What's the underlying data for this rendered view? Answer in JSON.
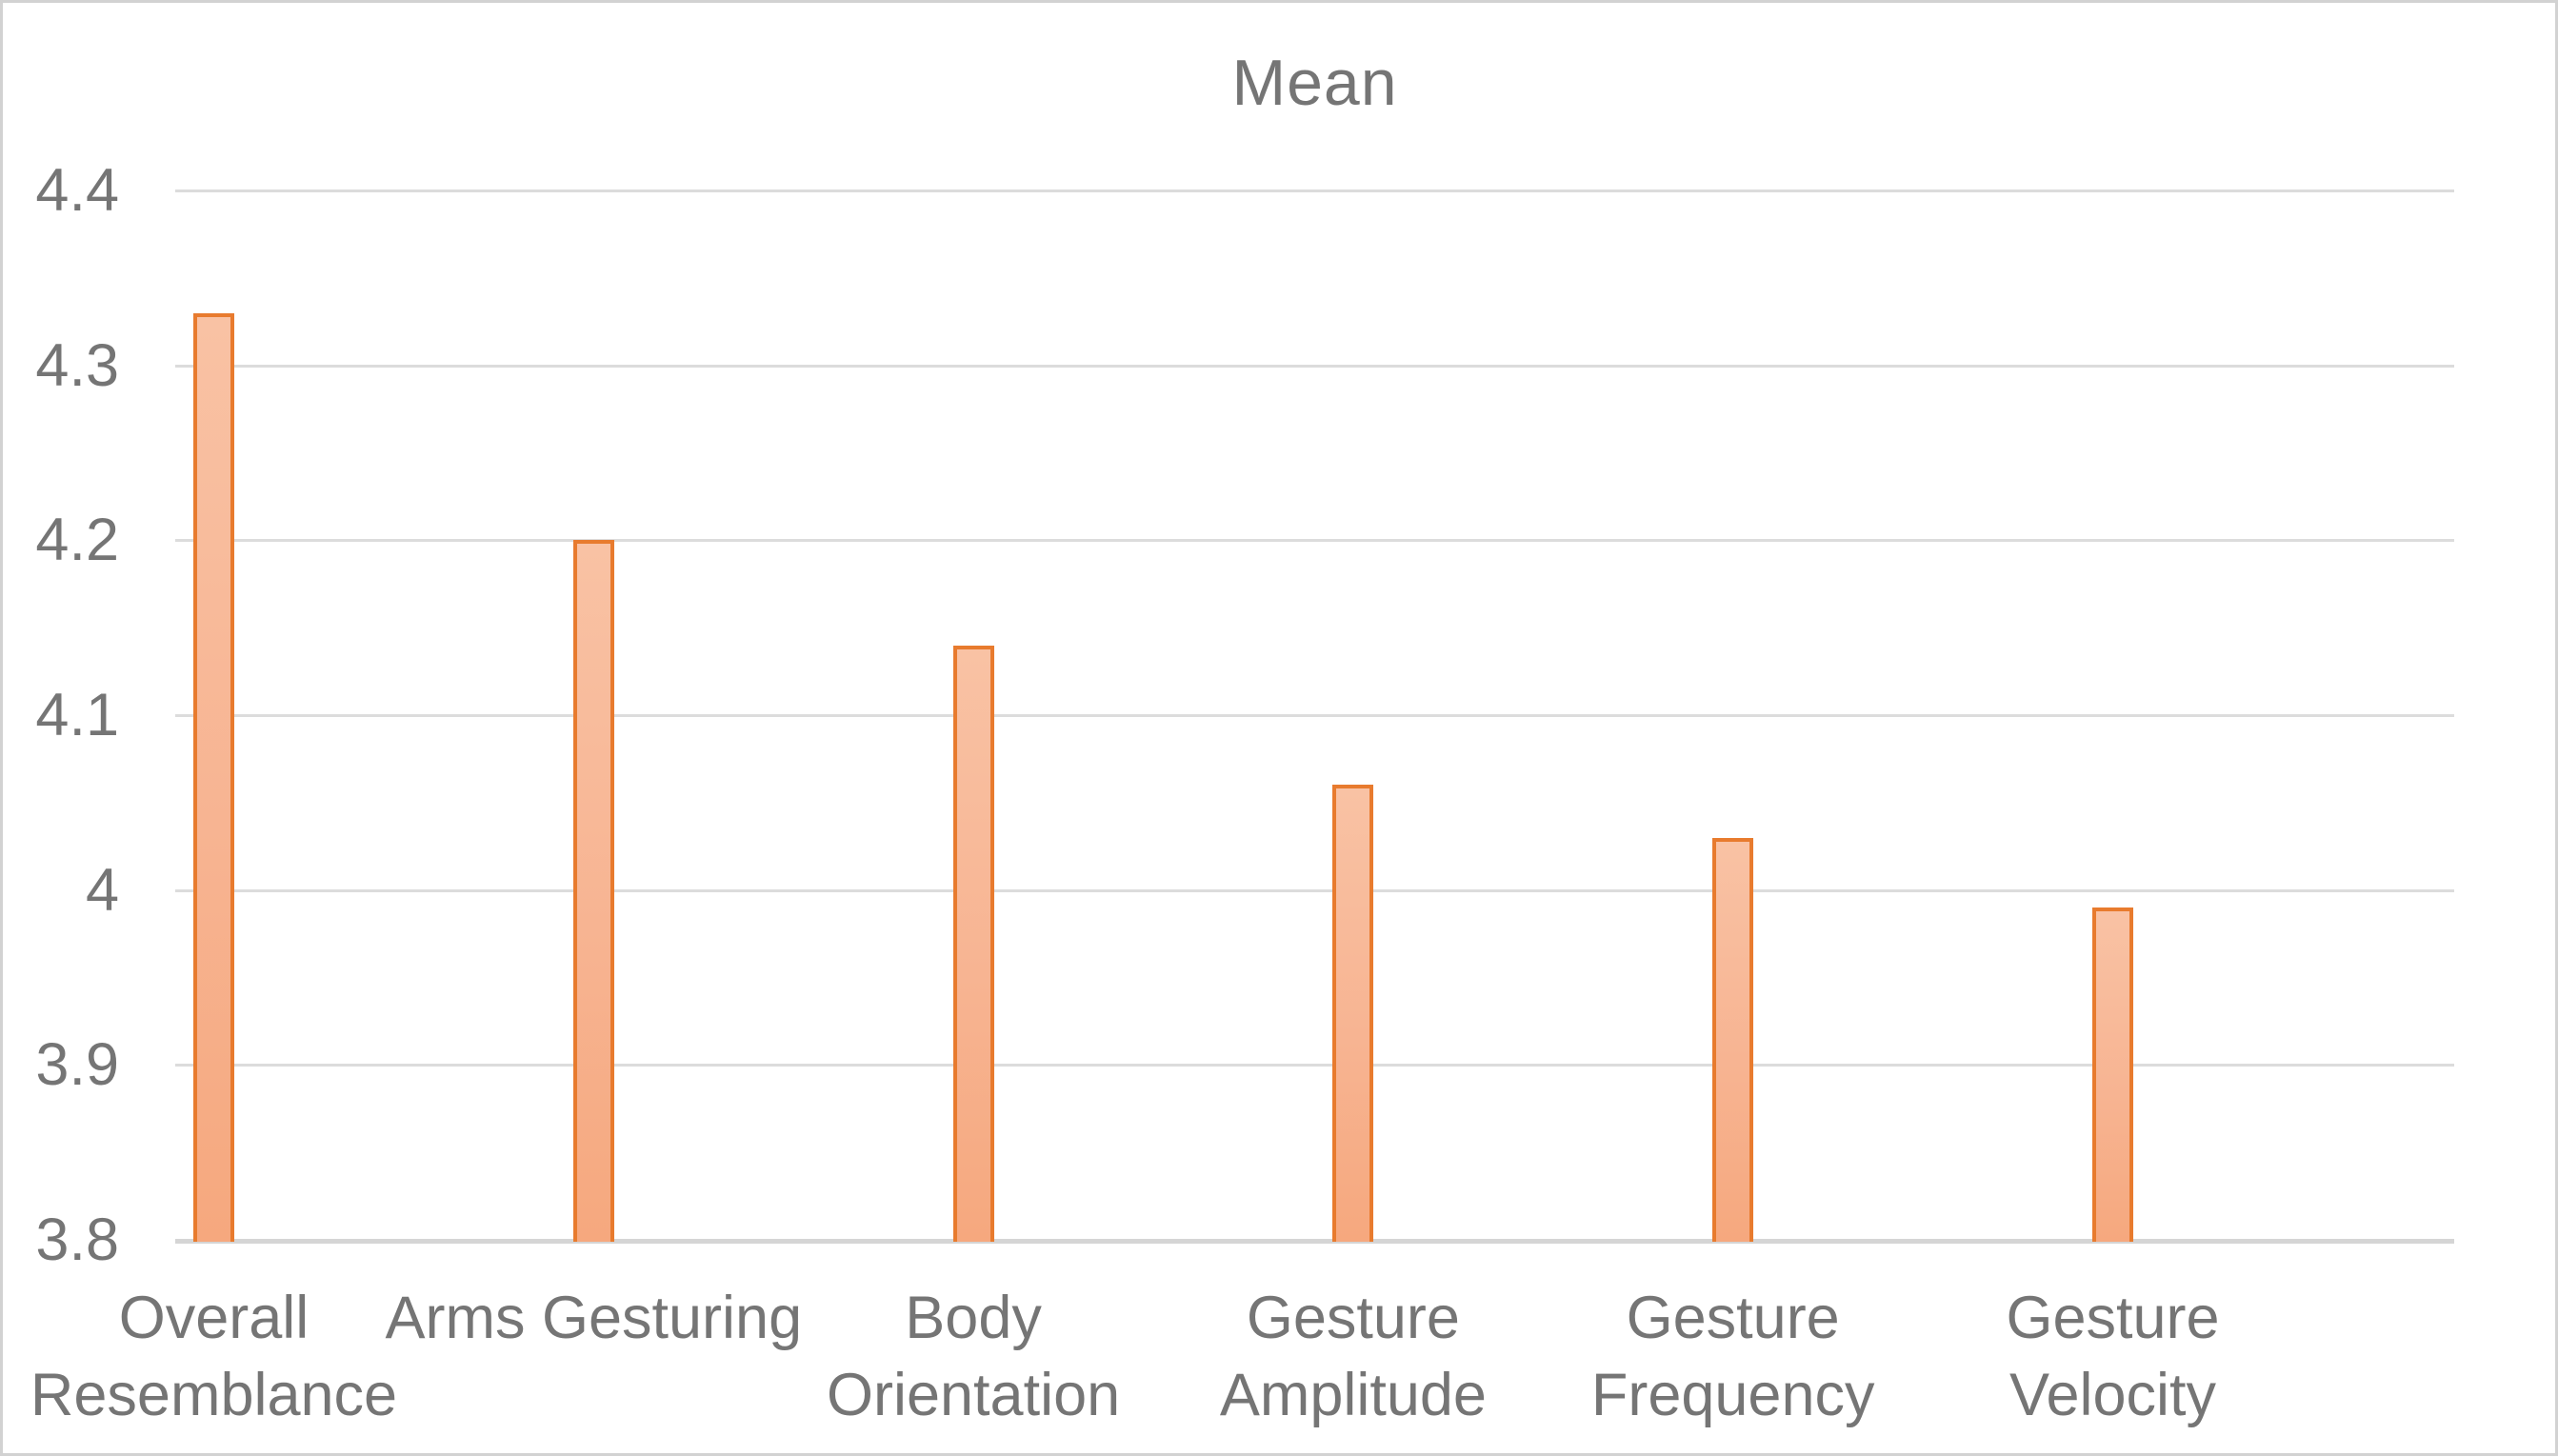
{
  "title": "Mean",
  "chart_data": {
    "type": "bar",
    "title": "Mean",
    "categories": [
      "Overall Resemblance",
      "Arms Gesturing",
      "Body Orientation",
      "Gesture Amplitude",
      "Gesture Frequency",
      "Gesture Velocity"
    ],
    "category_display_lines": [
      "Overall\nResemblance",
      "Arms Gesturing",
      "Body\nOrientation",
      "Gesture\nAmplitude",
      "Gesture\nFrequency",
      "Gesture\nVelocity"
    ],
    "values": [
      4.33,
      4.2,
      4.14,
      4.06,
      4.03,
      3.99
    ],
    "xlabel": "",
    "ylabel": "",
    "ylim": [
      3.8,
      4.4
    ],
    "ytick_step": 0.1,
    "ytick_labels": [
      "4.4",
      "4.3",
      "4.2",
      "4.1",
      "4",
      "3.9",
      "3.8"
    ],
    "grid": true,
    "legend": false,
    "colors": {
      "bar_border": "#e87b2e",
      "bar_fill_top": "#f9c2a4",
      "bar_fill_bottom": "#f6a87e",
      "gridline": "#dcdcdc",
      "axis_line": "#d5d5d5",
      "text": "#757575",
      "background": "#ffffff",
      "canvas_border": "#d2d2d2"
    }
  }
}
